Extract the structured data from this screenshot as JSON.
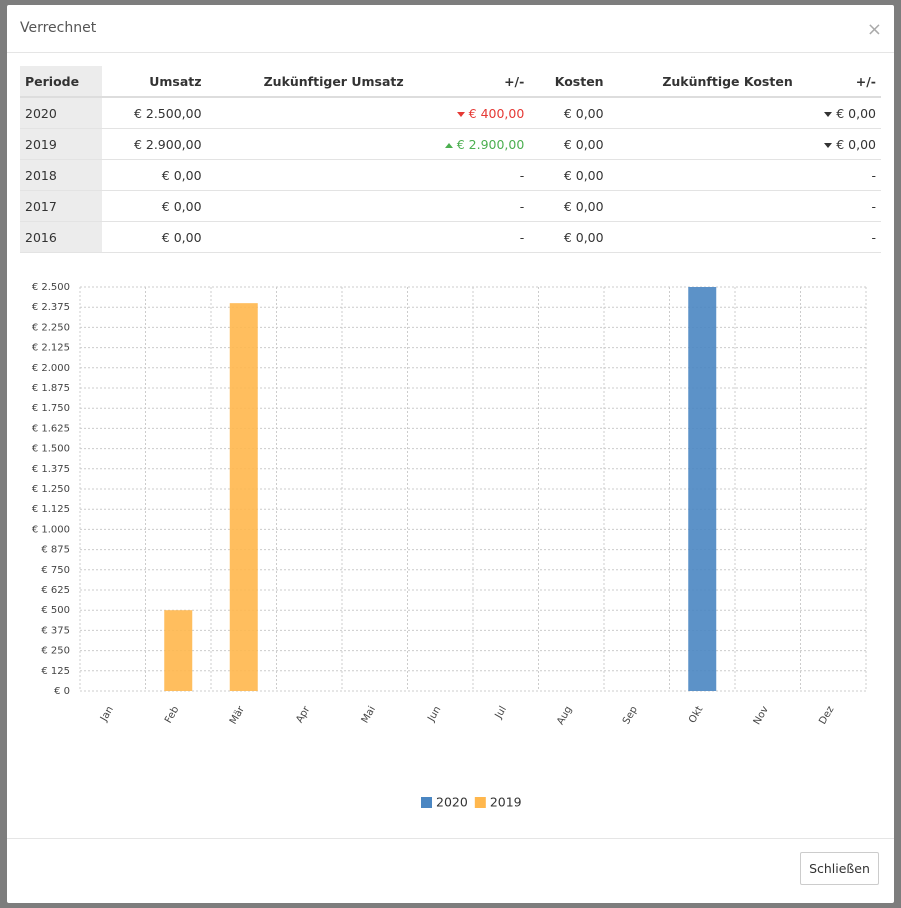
{
  "modal": {
    "title": "Verrechnet",
    "close": "×"
  },
  "table": {
    "headers": [
      "Periode",
      "Umsatz",
      "Zukünftiger Umsatz",
      "+/-",
      "Kosten",
      "Zukünftige Kosten",
      "+/-"
    ],
    "rows": [
      [
        "2020",
        "€ 2.500,00",
        "",
        {
          "text": "€ 400,00",
          "trend": "down",
          "color": "#e53935"
        },
        "€ 0,00",
        "",
        {
          "text": "€ 0,00",
          "trend": "down",
          "color": "#333333"
        }
      ],
      [
        "2019",
        "€ 2.900,00",
        "",
        {
          "text": "€ 2.900,00",
          "trend": "up",
          "color": "#4caf50"
        },
        "€ 0,00",
        "",
        {
          "text": "€ 0,00",
          "trend": "down",
          "color": "#333333"
        }
      ],
      [
        "2018",
        "€ 0,00",
        "",
        "-",
        "€ 0,00",
        "",
        "-"
      ],
      [
        "2017",
        "€ 0,00",
        "",
        "-",
        "€ 0,00",
        "",
        "-"
      ],
      [
        "2016",
        "€ 0,00",
        "",
        "-",
        "€ 0,00",
        "",
        "-"
      ]
    ]
  },
  "chart_data": {
    "type": "bar",
    "stacked": true,
    "grid": true,
    "categories": [
      "Jan",
      "Feb",
      "Mär",
      "Apr",
      "Mai",
      "Jun",
      "Jul",
      "Aug",
      "Sep",
      "Okt",
      "Nov",
      "Dez"
    ],
    "series": [
      {
        "name": "2020",
        "color": "#4a86c2",
        "values": [
          0,
          0,
          0,
          0,
          0,
          0,
          0,
          0,
          0,
          2500,
          0,
          0
        ]
      },
      {
        "name": "2019",
        "color": "#ffb74d",
        "values": [
          0,
          500,
          2400,
          0,
          0,
          0,
          0,
          0,
          0,
          0,
          0,
          0
        ]
      }
    ],
    "ylim": [
      0,
      2500
    ],
    "yticks": [
      {
        "value": 0,
        "label": "€ 0"
      },
      {
        "value": 125,
        "label": "€ 125"
      },
      {
        "value": 250,
        "label": "€ 250"
      },
      {
        "value": 375,
        "label": "€ 375"
      },
      {
        "value": 500,
        "label": "€ 500"
      },
      {
        "value": 625,
        "label": "€ 625"
      },
      {
        "value": 750,
        "label": "€ 750"
      },
      {
        "value": 875,
        "label": "€ 875"
      },
      {
        "value": 1000,
        "label": "€ 1.000"
      },
      {
        "value": 1125,
        "label": "€ 1.125"
      },
      {
        "value": 1250,
        "label": "€ 1.250"
      },
      {
        "value": 1375,
        "label": "€ 1.375"
      },
      {
        "value": 1500,
        "label": "€ 1.500"
      },
      {
        "value": 1625,
        "label": "€ 1.625"
      },
      {
        "value": 1750,
        "label": "€ 1.750"
      },
      {
        "value": 1875,
        "label": "€ 1.875"
      },
      {
        "value": 2000,
        "label": "€ 2.000"
      },
      {
        "value": 2125,
        "label": "€ 2.125"
      },
      {
        "value": 2250,
        "label": "€ 2.250"
      },
      {
        "value": 2375,
        "label": "€ 2.375"
      },
      {
        "value": 2500,
        "label": "€ 2.500"
      }
    ]
  },
  "footer": {
    "button": "Schließen"
  }
}
